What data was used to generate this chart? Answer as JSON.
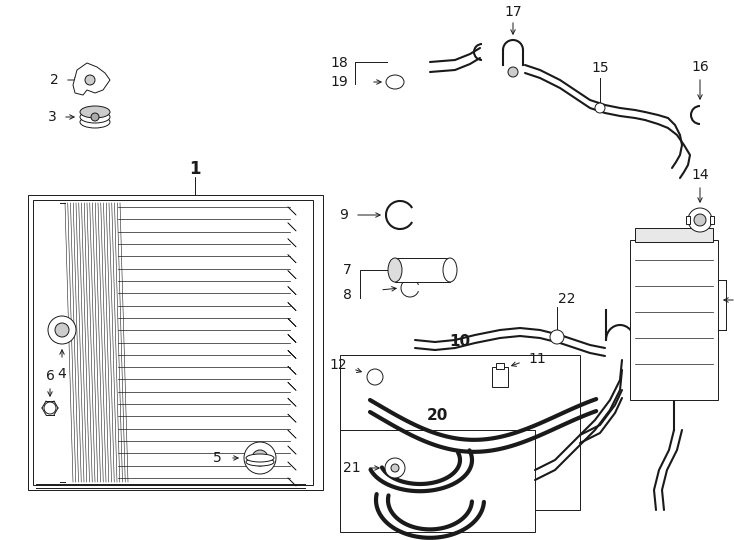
{
  "background_color": "#ffffff",
  "line_color": "#1a1a1a",
  "label_font_size": 10,
  "bold_label_size": 12,
  "fig_w": 7.34,
  "fig_h": 5.4,
  "dpi": 100
}
